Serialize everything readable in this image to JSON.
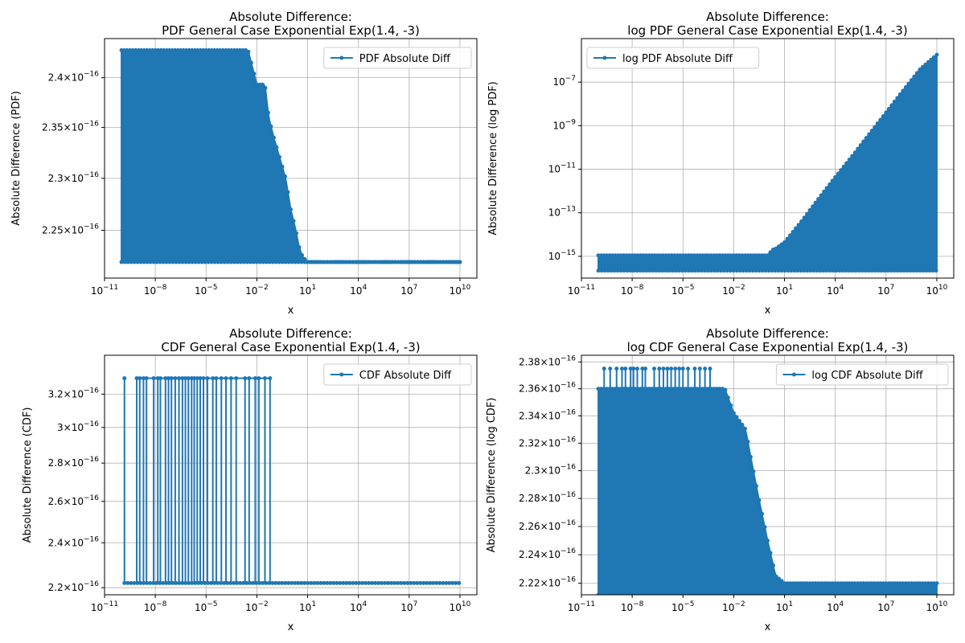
{
  "chart_data": [
    {
      "type": "line",
      "title": "Absolute Difference:",
      "subtitle": "PDF General Case Exponential Exp(1.4, -3)",
      "xlabel": "x",
      "ylabel": "Absolute Difference (PDF)",
      "x_scale": "log",
      "y_scale": "log",
      "xlim": [
        1e-11,
        100000000000.0
      ],
      "ylim": [
        2.205e-16,
        2.44e-16
      ],
      "grid": true,
      "legend": "top-right",
      "color": "#1f77b4",
      "x_ticks": [
        {
          "value": 1e-11,
          "base": "10",
          "exp": "−11"
        },
        {
          "value": 1e-08,
          "base": "10",
          "exp": "−8"
        },
        {
          "value": 1e-05,
          "base": "10",
          "exp": "−5"
        },
        {
          "value": 0.01,
          "base": "10",
          "exp": "−2"
        },
        {
          "value": 10.0,
          "base": "10",
          "exp": "1"
        },
        {
          "value": 10000.0,
          "base": "10",
          "exp": "4"
        },
        {
          "value": 10000000.0,
          "base": "10",
          "exp": "7"
        },
        {
          "value": 10000000000.0,
          "base": "10",
          "exp": "10"
        }
      ],
      "y_ticks": [
        {
          "value": 2.25e-16,
          "mantissa": "2.25×10",
          "exp": "−16"
        },
        {
          "value": 2.3e-16,
          "mantissa": "2.3×10",
          "exp": "−16"
        },
        {
          "value": 2.35e-16,
          "mantissa": "2.35×10",
          "exp": "−16"
        },
        {
          "value": 2.4e-16,
          "mantissa": "2.4×10",
          "exp": "−16"
        }
      ],
      "series": [
        {
          "name": "PDF Absolute Diff",
          "envelope_x": [
            1e-10,
            1e-09,
            1e-07,
            1e-05,
            0.001,
            0.003,
            0.01,
            0.03,
            0.05,
            0.1,
            0.5,
            1,
            2,
            3,
            5,
            10,
            10000.0,
            10000000000.0
          ],
          "envelope_y": [
            2.428e-16,
            2.428e-16,
            2.428e-16,
            2.428e-16,
            2.428e-16,
            2.428e-16,
            2.393e-16,
            2.393e-16,
            2.36e-16,
            2.34e-16,
            2.3e-16,
            2.27e-16,
            2.25e-16,
            2.235e-16,
            2.225e-16,
            2.22e-16,
            2.22e-16,
            2.22e-16
          ],
          "baseline": 2.22e-16
        }
      ]
    },
    {
      "type": "line",
      "title": "Absolute Difference:",
      "subtitle": "log PDF General Case Exponential Exp(1.4, -3)",
      "xlabel": "x",
      "ylabel": "Absolute Difference (log PDF)",
      "x_scale": "log",
      "y_scale": "log",
      "xlim": [
        1e-11,
        100000000000.0
      ],
      "ylim": [
        1e-16,
        1e-05
      ],
      "grid": true,
      "legend": "top-left",
      "color": "#1f77b4",
      "x_ticks": [
        {
          "value": 1e-11,
          "base": "10",
          "exp": "−11"
        },
        {
          "value": 1e-08,
          "base": "10",
          "exp": "−8"
        },
        {
          "value": 1e-05,
          "base": "10",
          "exp": "−5"
        },
        {
          "value": 0.01,
          "base": "10",
          "exp": "−2"
        },
        {
          "value": 10.0,
          "base": "10",
          "exp": "1"
        },
        {
          "value": 10000.0,
          "base": "10",
          "exp": "4"
        },
        {
          "value": 10000000.0,
          "base": "10",
          "exp": "7"
        },
        {
          "value": 10000000000.0,
          "base": "10",
          "exp": "10"
        }
      ],
      "y_ticks": [
        {
          "value": 1e-15,
          "mantissa": "10",
          "exp": "−15"
        },
        {
          "value": 1e-13,
          "mantissa": "10",
          "exp": "−13"
        },
        {
          "value": 1e-11,
          "mantissa": "10",
          "exp": "−11"
        },
        {
          "value": 1e-09,
          "mantissa": "10",
          "exp": "−9"
        },
        {
          "value": 1e-07,
          "mantissa": "10",
          "exp": "−7"
        }
      ],
      "series": [
        {
          "name": "log PDF Absolute Diff",
          "envelope_x": [
            1e-10,
            1e-05,
            1,
            2,
            3,
            10,
            100,
            1000.0,
            10000.0,
            100000.0,
            1000000.0,
            10000000.0,
            100000000.0,
            1000000000.0,
            10000000000.0
          ],
          "envelope_y": [
            1.1e-15,
            1.1e-15,
            1.1e-15,
            2e-15,
            2.2e-15,
            4.4e-15,
            4e-14,
            4.3e-13,
            4.3e-12,
            4e-11,
            4e-10,
            4e-09,
            4e-08,
            3.8e-07,
            1.8e-06
          ],
          "baseline": 2.2e-16
        }
      ]
    },
    {
      "type": "line",
      "title": "Absolute Difference:",
      "subtitle": "CDF General Case Exponential Exp(1.4, -3)",
      "xlabel": "x",
      "ylabel": "Absolute Difference (CDF)",
      "x_scale": "log",
      "y_scale": "log",
      "xlim": [
        1e-11,
        100000000000.0
      ],
      "ylim": [
        2.17e-16,
        3.45e-16
      ],
      "grid": true,
      "legend": "top-right",
      "color": "#1f77b4",
      "x_ticks": [
        {
          "value": 1e-11,
          "base": "10",
          "exp": "−11"
        },
        {
          "value": 1e-08,
          "base": "10",
          "exp": "−8"
        },
        {
          "value": 1e-05,
          "base": "10",
          "exp": "−5"
        },
        {
          "value": 0.01,
          "base": "10",
          "exp": "−2"
        },
        {
          "value": 10.0,
          "base": "10",
          "exp": "1"
        },
        {
          "value": 10000.0,
          "base": "10",
          "exp": "4"
        },
        {
          "value": 10000000.0,
          "base": "10",
          "exp": "7"
        },
        {
          "value": 10000000000.0,
          "base": "10",
          "exp": "10"
        }
      ],
      "y_ticks": [
        {
          "value": 2.2e-16,
          "mantissa": "2.2×10",
          "exp": "−16"
        },
        {
          "value": 2.4e-16,
          "mantissa": "2.4×10",
          "exp": "−16"
        },
        {
          "value": 2.6e-16,
          "mantissa": "2.6×10",
          "exp": "−16"
        },
        {
          "value": 2.8e-16,
          "mantissa": "2.8×10",
          "exp": "−16"
        },
        {
          "value": 3e-16,
          "mantissa": "3×10",
          "exp": "−16"
        },
        {
          "value": 3.2e-16,
          "mantissa": "3.2×10",
          "exp": "−16"
        }
      ],
      "series": [
        {
          "name": "CDF Absolute Diff",
          "spike_x": [
            1.5e-10,
            8e-10,
            1.2e-09,
            2e-09,
            3e-09,
            8e-09,
            1.4e-08,
            2e-08,
            4e-08,
            6e-08,
            9e-08,
            1.5e-07,
            2.5e-07,
            4e-07,
            6e-07,
            9e-07,
            1.4e-06,
            2e-06,
            3e-06,
            4.5e-06,
            7e-06,
            1.2e-05,
            2.5e-05,
            4e-05,
            8e-05,
            0.00015,
            0.0003,
            0.0006,
            0.002,
            0.0035,
            0.008,
            0.013,
            0.03,
            0.06
          ],
          "peak": 3.3e-16,
          "baseline": 2.22e-16,
          "x_end": 10000000000.0
        }
      ]
    },
    {
      "type": "line",
      "title": "Absolute Difference:",
      "subtitle": "log CDF General Case Exponential Exp(1.4, -3)",
      "xlabel": "x",
      "ylabel": "Absolute Difference (log CDF)",
      "x_scale": "log",
      "y_scale": "log",
      "xlim": [
        1e-11,
        100000000000.0
      ],
      "ylim": [
        2.212e-16,
        2.385e-16
      ],
      "grid": true,
      "legend": "top-right",
      "color": "#1f77b4",
      "x_ticks": [
        {
          "value": 1e-11,
          "base": "10",
          "exp": "−11"
        },
        {
          "value": 1e-08,
          "base": "10",
          "exp": "−8"
        },
        {
          "value": 1e-05,
          "base": "10",
          "exp": "−5"
        },
        {
          "value": 0.01,
          "base": "10",
          "exp": "−2"
        },
        {
          "value": 10.0,
          "base": "10",
          "exp": "1"
        },
        {
          "value": 10000.0,
          "base": "10",
          "exp": "4"
        },
        {
          "value": 10000000.0,
          "base": "10",
          "exp": "7"
        },
        {
          "value": 10000000000.0,
          "base": "10",
          "exp": "10"
        }
      ],
      "y_ticks": [
        {
          "value": 2.22e-16,
          "mantissa": "2.22×10",
          "exp": "−16"
        },
        {
          "value": 2.24e-16,
          "mantissa": "2.24×10",
          "exp": "−16"
        },
        {
          "value": 2.26e-16,
          "mantissa": "2.26×10",
          "exp": "−16"
        },
        {
          "value": 2.28e-16,
          "mantissa": "2.28×10",
          "exp": "−16"
        },
        {
          "value": 2.3e-16,
          "mantissa": "2.3×10",
          "exp": "−16"
        },
        {
          "value": 2.32e-16,
          "mantissa": "2.32×10",
          "exp": "−16"
        },
        {
          "value": 2.34e-16,
          "mantissa": "2.34×10",
          "exp": "−16"
        },
        {
          "value": 2.36e-16,
          "mantissa": "2.36×10",
          "exp": "−16"
        },
        {
          "value": 2.38e-16,
          "mantissa": "2.38×10",
          "exp": "−16"
        }
      ],
      "series": [
        {
          "name": "log CDF Absolute Diff",
          "envelope_x": [
            1e-10,
            1e-07,
            0.0001,
            0.003,
            0.01,
            0.05,
            0.1,
            0.3,
            1,
            3,
            10,
            10000.0,
            10000000000.0
          ],
          "envelope_y": [
            2.36e-16,
            2.36e-16,
            2.36e-16,
            2.36e-16,
            2.342e-16,
            2.33e-16,
            2.31e-16,
            2.28e-16,
            2.25e-16,
            2.225e-16,
            2.22e-16,
            2.22e-16,
            2.22e-16
          ],
          "spike_x": [
            2.2e-10,
            5e-10,
            1.2e-09,
            2.5e-09,
            4e-09,
            8e-09,
            1.2e-08,
            2e-08,
            4e-08,
            6e-08,
            2e-07,
            4e-07,
            7e-07,
            1.2e-06,
            2e-06,
            3.5e-06,
            6e-06,
            1e-05,
            2e-05,
            5e-05,
            0.0001,
            0.0002,
            0.0004
          ],
          "spike_peak": 2.375e-16,
          "baseline": 2.2e-16
        }
      ]
    }
  ]
}
